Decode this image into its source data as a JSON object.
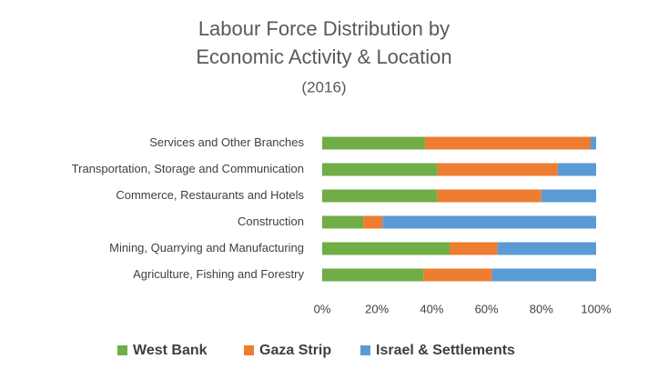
{
  "chart_data": {
    "type": "stacked-bar-horizontal",
    "title": [
      "Labour Force Distribution by",
      "Economic Activity & Location"
    ],
    "subtitle": "(2016)",
    "categories": [
      "Services and Other Branches",
      "Transportation, Storage and Communication",
      "Commerce, Restaurants and Hotels",
      "Construction",
      "Mining, Quarrying and Manufacturing",
      "Agriculture, Fishing and Forestry"
    ],
    "series": [
      {
        "name": "West Bank",
        "color": "#70ad47",
        "values": [
          37.5,
          42,
          42,
          15,
          46.5,
          37
        ]
      },
      {
        "name": "Gaza Strip",
        "color": "#ed7d31",
        "values": [
          60.5,
          44,
          38,
          7,
          17.5,
          25
        ]
      },
      {
        "name": "Israel & Settlements",
        "color": "#5b9bd5",
        "values": [
          2,
          14,
          20,
          78,
          36,
          38
        ]
      }
    ],
    "xlim": [
      0,
      100
    ],
    "xticks": [
      {
        "value": 0,
        "label": "0%"
      },
      {
        "value": 20,
        "label": "20%"
      },
      {
        "value": 40,
        "label": "40%"
      },
      {
        "value": 60,
        "label": "60%"
      },
      {
        "value": 80,
        "label": "80%"
      },
      {
        "value": 100,
        "label": "100%"
      }
    ],
    "grid": false,
    "legend": "bottom"
  }
}
